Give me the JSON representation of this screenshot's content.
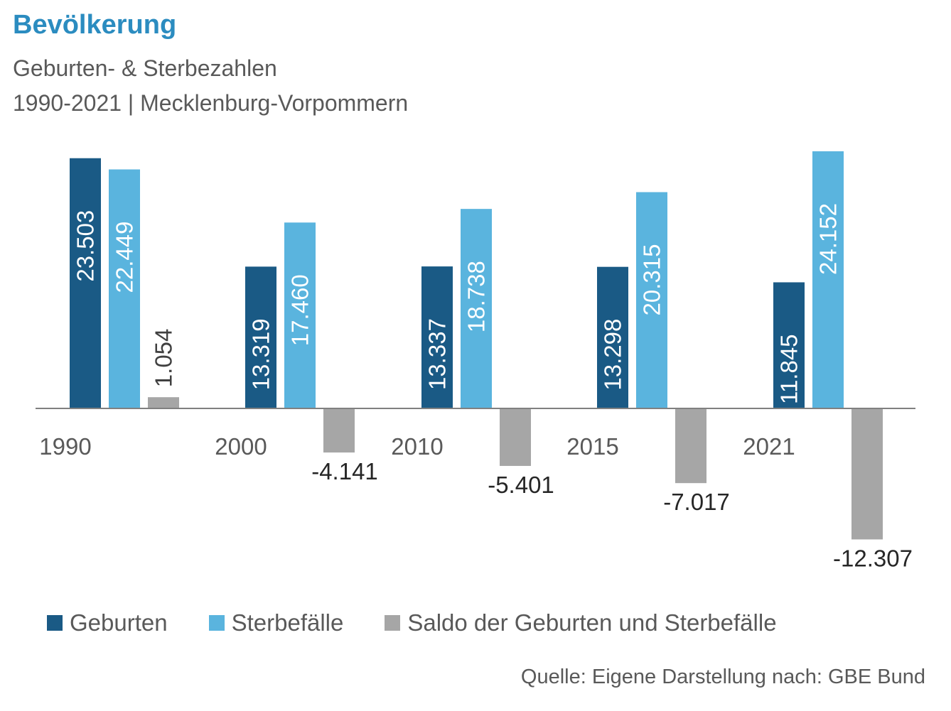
{
  "title": "Bevölkerung",
  "subtitle1": "Geburten- & Sterbezahlen",
  "subtitle2": "1990-2021 | Mecklenburg-Vorpommern",
  "source": "Quelle: Eigene Darstellung nach: GBE Bund",
  "colors": {
    "geburten": "#1a5a85",
    "sterbefaelle": "#5ab4de",
    "saldo": "#a6a6a6"
  },
  "legend": [
    {
      "label": "Geburten",
      "color": "#1a5a85"
    },
    {
      "label": "Sterbefälle",
      "color": "#5ab4de"
    },
    {
      "label": "Saldo der Geburten und Sterbefälle",
      "color": "#a6a6a6"
    }
  ],
  "chart_data": {
    "type": "bar",
    "categories": [
      "1990",
      "2000",
      "2010",
      "2015",
      "2021"
    ],
    "series": [
      {
        "name": "Geburten",
        "values": [
          23503,
          13319,
          13337,
          13298,
          11845
        ],
        "labels": [
          "23.503",
          "13.319",
          "13.337",
          "13.298",
          "11.845"
        ]
      },
      {
        "name": "Sterbefälle",
        "values": [
          22449,
          17460,
          18738,
          20315,
          24152
        ],
        "labels": [
          "22.449",
          "17.460",
          "18.738",
          "20.315",
          "24.152"
        ]
      },
      {
        "name": "Saldo der Geburten und Sterbefälle",
        "values": [
          1054,
          -4141,
          -5401,
          -7017,
          -12307
        ],
        "labels": [
          "1.054",
          "-4.141",
          "-5.401",
          "-7.017",
          "-12.307"
        ]
      }
    ],
    "grid": false,
    "legend_position": "bottom"
  }
}
